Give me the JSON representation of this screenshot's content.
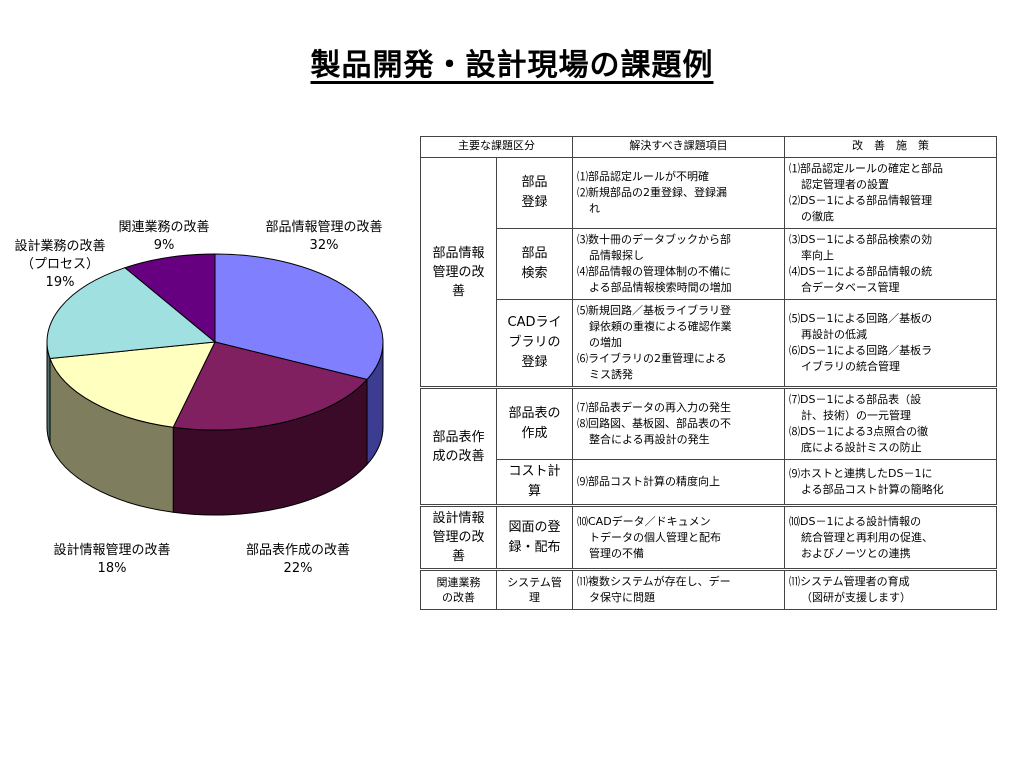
{
  "title": "製品開発・設計現場の課題例",
  "chart_data": {
    "type": "pie",
    "style": "3d",
    "slices": [
      {
        "label": "部品情報管理の改善",
        "value": 32,
        "display": "32%",
        "color": "#8080FF",
        "side_color": "#3C3C90"
      },
      {
        "label": "部品表作成の改善",
        "value": 22,
        "display": "22%",
        "color": "#802060",
        "side_color": "#3A0A28"
      },
      {
        "label": "設計情報管理の改善",
        "value": 18,
        "display": "18%",
        "color": "#FFFFC0",
        "side_color": "#7E7E5E"
      },
      {
        "label": "設計業務の改善",
        "label2": "（プロセス）",
        "value": 19,
        "display": "19%",
        "color": "#A0E0E0",
        "side_color": "#507070"
      },
      {
        "label": "関連業務の改善",
        "value": 9,
        "display": "9%",
        "color": "#660080",
        "side_color": "#330040"
      }
    ]
  },
  "table": {
    "headers": [
      "主要な課題区分",
      "解決すべき課題項目",
      "改　善　施　策"
    ],
    "groups": [
      {
        "category": "部品情報管理の改善",
        "category_lines": [
          "部品情報",
          "管理の改",
          "善"
        ],
        "rows": [
          {
            "sub_lines": [
              "部品",
              "登録"
            ],
            "issues": [
              [
                "⑴部品認定ルールが不明確"
              ],
              [
                "⑵新規部品の2重登録、登録漏",
                "れ"
              ]
            ],
            "measures": [
              [
                "⑴部品認定ルールの確定と部品",
                "認定管理者の設置"
              ],
              [
                "⑵DS－1による部品情報管理",
                "の徹底"
              ]
            ]
          },
          {
            "sub_lines": [
              "部品",
              "検索"
            ],
            "issues": [
              [
                "⑶数十冊のデータブックから部",
                "品情報探し"
              ],
              [
                "⑷部品情報の管理体制の不備に",
                "よる部品情報検索時間の増加"
              ]
            ],
            "measures": [
              [
                "⑶DS－1による部品検索の効",
                "率向上"
              ],
              [
                "⑷DS－1による部品情報の統",
                "合データベース管理"
              ]
            ]
          },
          {
            "sub_lines": [
              "CADライ",
              "ブラリの",
              "登録"
            ],
            "issues": [
              [
                "⑸新規回路／基板ライブラリ登",
                "録依頼の重複による確認作業",
                "の増加"
              ],
              [
                "⑹ライブラリの2重管理による",
                "ミス誘発"
              ]
            ],
            "measures": [
              [
                "⑸DS－1による回路／基板の",
                "再設計の低減"
              ],
              [
                "⑹DS－1による回路／基板ラ",
                "イブラリの統合管理"
              ]
            ]
          }
        ]
      },
      {
        "category": "部品表作成の改善",
        "category_lines": [
          "部品表作",
          "成の改善"
        ],
        "rows": [
          {
            "sub_lines": [
              "部品表の",
              "作成"
            ],
            "issues": [
              [
                "⑺部品表データの再入力の発生"
              ],
              [
                "⑻回路図、基板図、部品表の不",
                "整合による再設計の発生"
              ]
            ],
            "measures": [
              [
                "⑺DS－1による部品表（設",
                "計、技術）の一元管理"
              ],
              [
                "⑻DS－1による3点照合の徹",
                "底による設計ミスの防止"
              ]
            ]
          },
          {
            "sub_lines": [
              "コスト計",
              "算"
            ],
            "issues": [
              [
                "⑼部品コスト計算の精度向上"
              ]
            ],
            "measures": [
              [
                "⑼ホストと連携したDS－1に",
                "よる部品コスト計算の簡略化"
              ]
            ]
          }
        ]
      },
      {
        "category": "設計情報管理の改善",
        "category_lines": [
          "設計情報",
          "管理の改",
          "善"
        ],
        "rows": [
          {
            "sub_lines": [
              "図面の登",
              "録・配布"
            ],
            "issues": [
              [
                "⑽CADデータ／ドキュメン",
                "トデータの個人管理と配布",
                "管理の不備"
              ]
            ],
            "measures": [
              [
                "⑽DS－1による設計情報の",
                "統合管理と再利用の促進、",
                "およびノーツとの連携"
              ]
            ]
          }
        ]
      },
      {
        "category": "関連業務の改善",
        "category_lines": [
          "関連業務",
          "の改善"
        ],
        "small": true,
        "rows": [
          {
            "sub_lines": [
              "システム管",
              "理"
            ],
            "issues": [
              [
                "⑾複数システムが存在し、デー",
                "タ保守に問題"
              ]
            ],
            "measures": [
              [
                "⑾システム管理者の育成",
                "（図研が支援します）"
              ]
            ]
          }
        ]
      }
    ]
  }
}
